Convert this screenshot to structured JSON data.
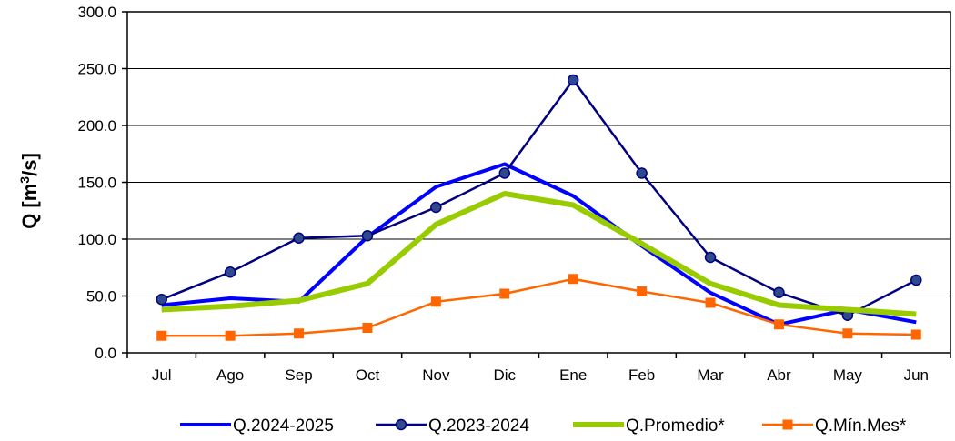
{
  "chart_data": {
    "type": "line",
    "title": "",
    "xlabel": "",
    "ylabel": "Q [m³/s]",
    "ylabel_main": "Q [m",
    "ylabel_sup": "3",
    "ylabel_tail": "/s]",
    "ylim": [
      0,
      300
    ],
    "yticks": [
      "0.0",
      "50.0",
      "100.0",
      "150.0",
      "200.0",
      "250.0",
      "300.0"
    ],
    "categories": [
      "Jul",
      "Ago",
      "Sep",
      "Oct",
      "Nov",
      "Dic",
      "Ene",
      "Feb",
      "Mar",
      "Abr",
      "May",
      "Jun"
    ],
    "grid": true,
    "legend_position": "bottom",
    "series": [
      {
        "name": "Q.2024-2025",
        "color": "#0000ff",
        "marker": "none",
        "values": [
          42,
          48,
          45,
          102,
          146,
          166,
          138,
          94,
          53,
          25,
          38,
          27
        ]
      },
      {
        "name": "Q.2023-2024",
        "color": "#000080",
        "marker": "circle",
        "marker_fill": "#2e4a8c",
        "values": [
          47,
          71,
          101,
          103,
          128,
          158,
          240,
          158,
          84,
          53,
          33,
          64
        ]
      },
      {
        "name": "Q.Promedio*",
        "color": "#99cc00",
        "marker": "none",
        "values": [
          38,
          41,
          46,
          61,
          113,
          140,
          130,
          96,
          61,
          42,
          38,
          34
        ]
      },
      {
        "name": "Q.Mín.Mes*",
        "color": "#ff6600",
        "marker": "square",
        "values": [
          15,
          15,
          17,
          22,
          45,
          52,
          65,
          54,
          44,
          25,
          17,
          16
        ]
      }
    ]
  }
}
